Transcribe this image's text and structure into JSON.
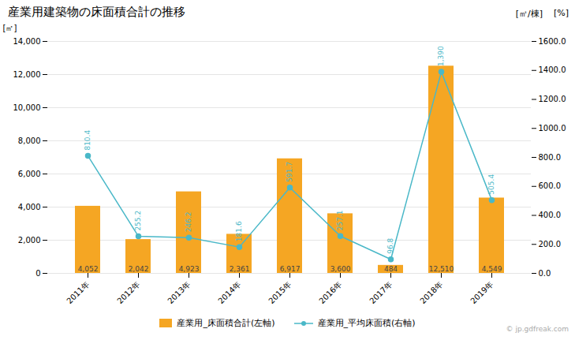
{
  "chart_data": {
    "type": "bar",
    "title": "産業用建築物の床面積合計の推移",
    "ylabel": "[㎡]",
    "y2label": "[㎡/棟]",
    "annotations": [
      "[%]",
      "© jp.gdfreak.com"
    ],
    "categories": [
      "2011年",
      "2012年",
      "2013年",
      "2014年",
      "2015年",
      "2016年",
      "2017年",
      "2018年",
      "2019年"
    ],
    "series": [
      {
        "name": "産業用_床面積合計(左軸)",
        "type": "bar",
        "color": "#f5a623",
        "values": [
          4052,
          2042,
          4923,
          2361,
          6917,
          3600,
          484,
          12510,
          4549
        ],
        "value_labels": [
          "4,052",
          "2,042",
          "4,923",
          "2,361",
          "6,917",
          "3,600",
          "484",
          "12,510",
          "4,549"
        ]
      },
      {
        "name": "産業用_平均床面積(右軸)",
        "type": "line",
        "axis": "y2",
        "color": "#4ab8c8",
        "marker": "circle",
        "values": [
          810.4,
          255.2,
          246.2,
          181.6,
          591.7,
          257.1,
          96.8,
          1390.0,
          505.4
        ],
        "value_labels": [
          "810.4",
          "255.2",
          "246.2",
          "181.6",
          "591.7",
          "257.1",
          "96.8",
          "1,390",
          "505.4"
        ]
      }
    ],
    "ylim": [
      0,
      14000
    ],
    "yticks": [
      0,
      {
        "value": 2000,
        "label": "2,000"
      },
      {
        "value": 4000,
        "label": "4,000"
      },
      {
        "value": 6000,
        "label": "6,000"
      },
      {
        "value": 8000,
        "label": "8,000"
      },
      {
        "value": 10000,
        "label": "10,000"
      },
      {
        "value": 12000,
        "label": "12,000"
      },
      {
        "value": 14000,
        "label": "14,000"
      }
    ],
    "y2lim": [
      0,
      1600
    ],
    "y2ticks": [
      {
        "value": 0,
        "label": "0.0"
      },
      {
        "value": 200,
        "label": "200.0"
      },
      {
        "value": 400,
        "label": "400.0"
      },
      {
        "value": 600,
        "label": "600.0"
      },
      {
        "value": 800,
        "label": "800.0"
      },
      {
        "value": 1000,
        "label": "1000.0"
      },
      {
        "value": 1200,
        "label": "1200.0"
      },
      {
        "value": 1400,
        "label": "1400.0"
      },
      {
        "value": 1600,
        "label": "1600.0"
      }
    ],
    "grid": true,
    "legend": "bottom",
    "data_labels": true
  }
}
